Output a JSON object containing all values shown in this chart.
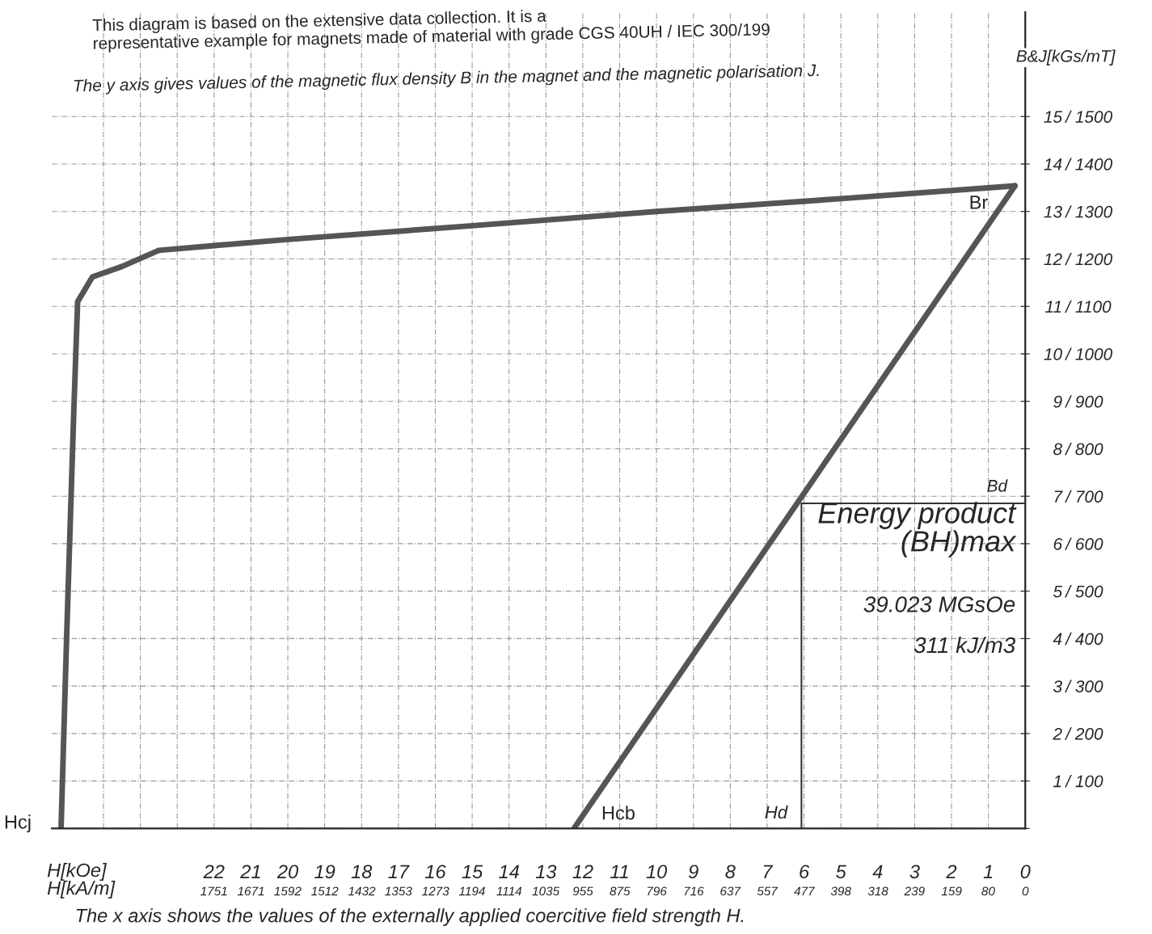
{
  "chart_data": {
    "type": "line",
    "title": "This diagram is based on the extensive data collection. It is a\nrepresentative example for magnets made of material with grade CGS 40UH / IEC 300/199",
    "subtitle": "The y axis gives values of the magnetic flux density B in the magnet and the magnetic polarisation J.",
    "xlabel": "H[kOe]\nH[kA/m]",
    "ylabel": "B&J[kGs/mT]",
    "series": [
      {
        "color": "#555555",
        "x": [
          0.28,
          5,
          10,
          15,
          20,
          22,
          23.5,
          24.5,
          25.3,
          25.7,
          25.8,
          26.0,
          26.15
        ],
        "values": [
          13.54,
          13.27,
          13.0,
          12.7,
          12.41,
          12.28,
          12.18,
          11.84,
          11.62,
          11.1,
          8.9,
          4.0,
          0
        ]
      },
      {
        "color": "#555555",
        "x": [
          0.28,
          12.24
        ],
        "values": [
          13.54,
          0
        ]
      },
      {
        "color": "#333333",
        "x": [
          6.07,
          6.07,
          0
        ],
        "values": [
          0,
          6.85,
          6.85
        ]
      }
    ],
    "xlim": [
      26.4,
      0
    ],
    "xticks": [
      {
        "value": 25,
        "label": null
      },
      {
        "value": 24,
        "label": null
      },
      {
        "value": 23,
        "label": null
      },
      22,
      21,
      20,
      19,
      18,
      17,
      16,
      15,
      14,
      13,
      12,
      11,
      10,
      9,
      8,
      7,
      6,
      5,
      4,
      3,
      2,
      1,
      0
    ],
    "x2lim": [
      2101,
      0
    ],
    "x2ticks": [
      1751,
      1671,
      1592,
      1512,
      1432,
      1353,
      1273,
      1194,
      1114,
      1035,
      955,
      875,
      796,
      716,
      637,
      557,
      477,
      398,
      318,
      239,
      159,
      80,
      0
    ],
    "ylim": [
      0,
      17.2
    ],
    "yticks": [
      {
        "value": 0,
        "label": null
      },
      1,
      2,
      3,
      4,
      5,
      6,
      7,
      8,
      9,
      10,
      11,
      12,
      13,
      14,
      15
    ],
    "y2lim": [
      0,
      1720
    ],
    "y2ticks": [
      {
        "value": 100,
        "label": "/ 100"
      },
      {
        "value": 200,
        "label": "/ 200"
      },
      {
        "value": 300,
        "label": "/ 300"
      },
      {
        "value": 400,
        "label": "/ 400"
      },
      {
        "value": 500,
        "label": "/ 500"
      },
      {
        "value": 600,
        "label": "/ 600"
      },
      {
        "value": 700,
        "label": "/ 700"
      },
      {
        "value": 800,
        "label": "/ 800"
      },
      {
        "value": 900,
        "label": "/ 900"
      },
      {
        "value": 1000,
        "label": "/ 1000"
      },
      {
        "value": 1100,
        "label": "/ 1100"
      },
      {
        "value": 1200,
        "label": "/ 1200"
      },
      {
        "value": 1300,
        "label": "/ 1300"
      },
      {
        "value": 1400,
        "label": "/ 1400"
      },
      {
        "value": 1500,
        "label": "/ 1500"
      }
    ],
    "grid": true,
    "annotations": [
      "Energy product\n(BH)max",
      "39.023 MGsOe",
      "311 kJ/m3",
      "The x axis shows the values of the externally applied coercitive field strength H.",
      "Br",
      "Bd",
      "Hd",
      "Hcb",
      "Hcj"
    ]
  }
}
